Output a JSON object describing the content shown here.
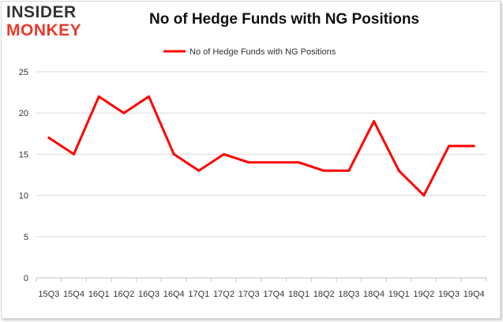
{
  "logo": {
    "line1": "INSIDER",
    "line2": "MONKEY"
  },
  "chart_data": {
    "type": "line",
    "title": "No of Hedge Funds with NG Positions",
    "categories": [
      "15Q3",
      "15Q4",
      "16Q1",
      "16Q2",
      "16Q3",
      "16Q4",
      "17Q1",
      "17Q2",
      "17Q3",
      "17Q4",
      "18Q1",
      "18Q2",
      "18Q3",
      "18Q4",
      "19Q1",
      "19Q2",
      "19Q3",
      "19Q4"
    ],
    "series": [
      {
        "name": "No of Hedge Funds with NG Positions",
        "values": [
          17,
          15,
          22,
          20,
          22,
          15,
          13,
          15,
          14,
          14,
          14,
          13,
          13,
          19,
          13,
          10,
          16,
          16
        ],
        "color": "#ff0000"
      }
    ],
    "ylim": [
      0,
      25
    ],
    "yticks": [
      0,
      5,
      10,
      15,
      20,
      25
    ],
    "grid": "horizontal",
    "legend": "top-center"
  }
}
